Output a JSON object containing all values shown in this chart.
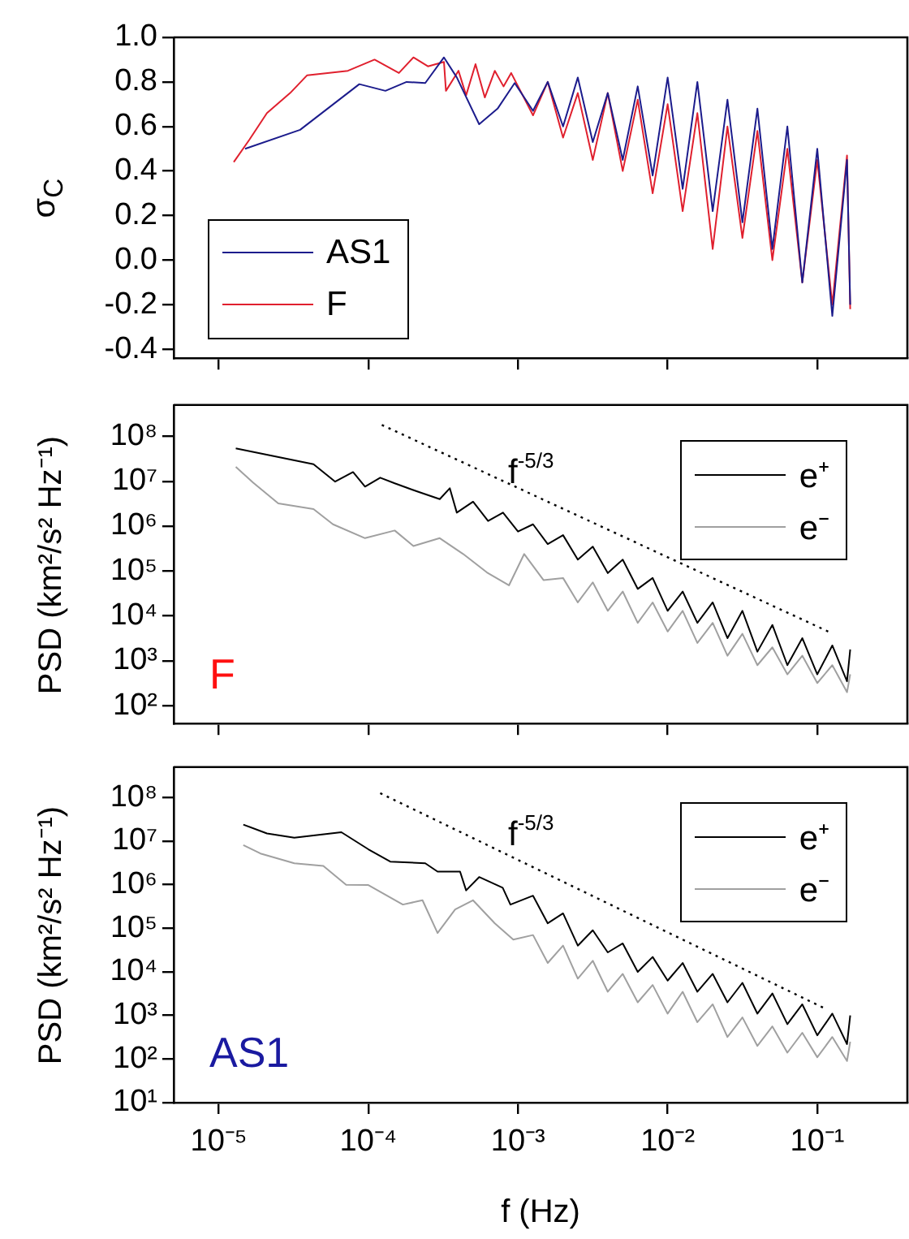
{
  "chart_data": [
    {
      "type": "line",
      "ylabel": "σ$_{C}$",
      "log": "x",
      "xlim": [
        5e-06,
        0.4
      ],
      "xticks": [
        {
          "value": 1e-05,
          "label": null
        },
        {
          "value": 0.0001,
          "label": null
        },
        {
          "value": 0.001,
          "label": null
        },
        {
          "value": 0.01,
          "label": null
        },
        {
          "value": 0.1,
          "label": null
        }
      ],
      "ylim": [
        -0.44,
        1.0
      ],
      "yticks": [
        -0.4,
        -0.2,
        {
          "value": 0,
          "label": "0.0"
        },
        0.2,
        0.4,
        0.6,
        0.8,
        {
          "value": 1,
          "label": "1.0"
        }
      ],
      "tick_labels": "y",
      "legend": "bottom left",
      "grid": false,
      "marker": "none",
      "series": [
        {
          "name": "AS1",
          "color": "#1c1c8c",
          "x": [
            1.5e-05,
            3.5e-05,
            8.7e-05,
            0.00013,
            0.00018,
            0.00024,
            0.00032,
            0.00039,
            0.00055,
            0.00073,
            0.00095,
            0.00126,
            0.00158,
            0.002,
            0.00251,
            0.00316,
            0.00398,
            0.00501,
            0.00631,
            0.00794,
            0.01,
            0.0126,
            0.0158,
            0.02,
            0.0251,
            0.0316,
            0.0398,
            0.0501,
            0.0631,
            0.0794,
            0.1,
            0.126,
            0.158,
            0.166
          ],
          "values": [
            0.5,
            0.585,
            0.79,
            0.76,
            0.8,
            0.795,
            0.91,
            0.82,
            0.61,
            0.68,
            0.795,
            0.67,
            0.8,
            0.6,
            0.82,
            0.53,
            0.75,
            0.45,
            0.78,
            0.38,
            0.82,
            0.32,
            0.8,
            0.22,
            0.72,
            0.17,
            0.68,
            0.05,
            0.6,
            -0.1,
            0.5,
            -0.25,
            0.45,
            -0.2
          ]
        },
        {
          "name": "F",
          "color": "#e0202e",
          "x": [
            1.26e-05,
            1.6e-05,
            2.1e-05,
            3e-05,
            3.9e-05,
            7.3e-05,
            0.00011,
            0.00016,
            0.0002,
            0.00025,
            0.00032,
            0.00033,
            0.0004,
            0.00045,
            0.00052,
            0.0006,
            0.0007,
            0.0008,
            0.0009,
            0.00126,
            0.00158,
            0.002,
            0.00251,
            0.00316,
            0.00398,
            0.00501,
            0.00631,
            0.00794,
            0.01,
            0.0126,
            0.0158,
            0.02,
            0.0251,
            0.0316,
            0.0398,
            0.0501,
            0.0631,
            0.0794,
            0.1,
            0.126,
            0.158,
            0.166
          ],
          "values": [
            0.44,
            0.54,
            0.66,
            0.75,
            0.83,
            0.85,
            0.9,
            0.84,
            0.91,
            0.87,
            0.89,
            0.76,
            0.85,
            0.74,
            0.88,
            0.73,
            0.85,
            0.78,
            0.84,
            0.65,
            0.8,
            0.55,
            0.75,
            0.45,
            0.75,
            0.4,
            0.72,
            0.3,
            0.7,
            0.22,
            0.66,
            0.05,
            0.6,
            0.1,
            0.58,
            0.0,
            0.5,
            -0.1,
            0.45,
            -0.2,
            0.47,
            -0.22
          ]
        }
      ]
    },
    {
      "type": "line",
      "title": "F",
      "ylabel": "PSD (km²/s² Hz⁻¹)",
      "log": "xy",
      "xlim": [
        5e-06,
        0.4
      ],
      "xticks": [
        {
          "value": 1e-05,
          "label": null
        },
        {
          "value": 0.0001,
          "label": null
        },
        {
          "value": 0.001,
          "label": null
        },
        {
          "value": 0.01,
          "label": null
        },
        {
          "value": 0.1,
          "label": null
        }
      ],
      "ylim": [
        40,
        500000000
      ],
      "yticks": [
        {
          "value": 100,
          "label": "10²"
        },
        {
          "value": 1000,
          "label": "10³"
        },
        {
          "value": 10000,
          "label": "10⁴"
        },
        {
          "value": 100000,
          "label": "10⁵"
        },
        {
          "value": 1000000,
          "label": "10⁶"
        },
        {
          "value": 10000000,
          "label": "10⁷"
        },
        {
          "value": 100000000,
          "label": "10⁸"
        }
      ],
      "tick_labels": "y",
      "legend": "top right",
      "grid": false,
      "marker": "none",
      "annotations": [
        "f$^{-5/3}$"
      ],
      "series": [
        {
          "name": "e⁺",
          "color": "#000000",
          "x": [
            1.3e-05,
            4.3e-05,
            6e-05,
            7.9e-05,
            9.5e-05,
            0.00012,
            0.00015,
            0.00021,
            0.0003,
            0.00035,
            0.00039,
            0.000501,
            0.000631,
            0.000794,
            0.001,
            0.00126,
            0.00158,
            0.002,
            0.00251,
            0.00316,
            0.00398,
            0.00501,
            0.00631,
            0.00794,
            0.01,
            0.0126,
            0.0158,
            0.02,
            0.0251,
            0.0316,
            0.0398,
            0.0501,
            0.0631,
            0.0794,
            0.1,
            0.126,
            0.158,
            0.166
          ],
          "values": [
            54000000.0,
            24000000.0,
            9800000.0,
            16000000.0,
            7600000.0,
            12000000.0,
            9000000.0,
            6000000.0,
            4000000.0,
            7000000.0,
            2000000.0,
            3500000.0,
            1300000.0,
            2000000.0,
            760000.0,
            1100000.0,
            400000.0,
            630000.0,
            180000.0,
            350000.0,
            90000.0,
            180000.0,
            40000.0,
            70000.0,
            13000.0,
            35000.0,
            7000.0,
            20000.0,
            3200.0,
            13000.0,
            1600.0,
            6300.0,
            800.0,
            3200.0,
            500.0,
            2200.0,
            350.0,
            1800.0
          ]
        },
        {
          "name": "e⁻",
          "color": "#a0a0a0",
          "x": [
            1.3e-05,
            1.7e-05,
            2.5e-05,
            4.3e-05,
            5.8e-05,
            9.5e-05,
            0.00015,
            0.0002,
            0.0003,
            0.00043,
            0.00062,
            0.00087,
            0.0011,
            0.00148,
            0.002,
            0.00251,
            0.00316,
            0.00398,
            0.00501,
            0.00631,
            0.00794,
            0.01,
            0.0126,
            0.0158,
            0.02,
            0.0251,
            0.0316,
            0.0398,
            0.0501,
            0.0631,
            0.0794,
            0.1,
            0.126,
            0.158,
            0.166
          ],
          "values": [
            21000000.0,
            9300000.0,
            3200000.0,
            2400000.0,
            1100000.0,
            540000.0,
            800000.0,
            360000.0,
            540000.0,
            240000.0,
            93000.0,
            48000.0,
            240000.0,
            63000.0,
            70000.0,
            20000.0,
            56000.0,
            13000.0,
            35000.0,
            7000.0,
            20000.0,
            4500.0,
            13000.0,
            2500.0,
            7000.0,
            1300.0,
            4000.0,
            800.0,
            2000.0,
            500.0,
            1300.0,
            320.0,
            800.0,
            200.0,
            500.0
          ]
        },
        {
          "type": "line",
          "color": "#000000",
          "line_style": "dotted",
          "x": [
            0.000123,
            0.12
          ],
          "values": [
            180000000.0,
            4400
          ]
        }
      ]
    },
    {
      "type": "line",
      "title": "AS1",
      "ylabel": "PSD (km²/s² Hz⁻¹)",
      "xlabel": "f (Hz)",
      "log": "xy",
      "xlim": [
        5e-06,
        0.4
      ],
      "xticks": [
        {
          "value": 1e-05,
          "label": "10⁻⁵"
        },
        {
          "value": 0.0001,
          "label": "10⁻⁴"
        },
        {
          "value": 0.001,
          "label": "10⁻³"
        },
        {
          "value": 0.01,
          "label": "10⁻²"
        },
        {
          "value": 0.1,
          "label": "10⁻¹"
        }
      ],
      "ylim": [
        10,
        500000000
      ],
      "yticks": [
        {
          "value": 10,
          "label": "10¹"
        },
        {
          "value": 100,
          "label": "10²"
        },
        {
          "value": 1000,
          "label": "10³"
        },
        {
          "value": 10000,
          "label": "10⁴"
        },
        {
          "value": 100000,
          "label": "10⁵"
        },
        {
          "value": 1000000,
          "label": "10⁶"
        },
        {
          "value": 10000000,
          "label": "10⁷"
        },
        {
          "value": 100000000,
          "label": "10⁸"
        }
      ],
      "legend": "top right",
      "grid": false,
      "marker": "none",
      "annotations": [
        "f$^{-5/3}$"
      ],
      "series": [
        {
          "name": "e⁺",
          "color": "#000000",
          "x": [
            1.46e-05,
            2.1e-05,
            3.2e-05,
            6.6e-05,
            0.0001,
            0.00014,
            0.00024,
            0.00029,
            0.00041,
            0.00045,
            0.00055,
            0.00079,
            0.00089,
            0.00126,
            0.00158,
            0.002,
            0.00251,
            0.00316,
            0.00398,
            0.00501,
            0.00631,
            0.00794,
            0.01,
            0.0126,
            0.0158,
            0.02,
            0.0251,
            0.0316,
            0.0398,
            0.0501,
            0.0631,
            0.0794,
            0.1,
            0.126,
            0.158,
            0.166
          ],
          "values": [
            24000000.0,
            15000000.0,
            12000000.0,
            16000000.0,
            6500000.0,
            3400000.0,
            3100000.0,
            2000000.0,
            2000000.0,
            740000.0,
            1500000.0,
            850000.0,
            350000.0,
            560000.0,
            130000.0,
            220000.0,
            40000.0,
            90000.0,
            28000.0,
            45000.0,
            10000.0,
            22000.0,
            6300.0,
            16000.0,
            3500.0,
            9000.0,
            2000.0,
            5600.0,
            1100.0,
            3200.0,
            630.0,
            1800.0,
            350.0,
            1100.0,
            220.0,
            1000.0
          ]
        },
        {
          "name": "e⁻",
          "color": "#a0a0a0",
          "x": [
            1.46e-05,
            1.9e-05,
            3.2e-05,
            5e-05,
            7.1e-05,
            0.0001,
            0.00017,
            0.00023,
            0.00029,
            0.00038,
            0.0005,
            0.0007,
            0.00093,
            0.00126,
            0.00158,
            0.002,
            0.00251,
            0.00316,
            0.00398,
            0.00501,
            0.00631,
            0.00794,
            0.01,
            0.0126,
            0.0158,
            0.02,
            0.0251,
            0.0316,
            0.0398,
            0.0501,
            0.0631,
            0.0794,
            0.1,
            0.126,
            0.158,
            0.166
          ],
          "values": [
            8100000.0,
            5200000.0,
            3100000.0,
            2700000.0,
            1000000.0,
            980000.0,
            350000.0,
            440000.0,
            78000.0,
            270000.0,
            440000.0,
            130000.0,
            55000.0,
            70000.0,
            16000.0,
            40000.0,
            7000.0,
            18000.0,
            3500.0,
            9000.0,
            2000.0,
            5000.0,
            1100.0,
            3500.0,
            700.0,
            1800.0,
            320.0,
            900.0,
            200.0,
            560.0,
            140.0,
            400.0,
            110.0,
            320.0,
            90.0,
            250.0
          ]
        },
        {
          "type": "line",
          "color": "#000000",
          "line_style": "dotted",
          "x": [
            0.00012,
            0.11
          ],
          "values": [
            126000000.0,
            1500
          ]
        }
      ]
    }
  ]
}
